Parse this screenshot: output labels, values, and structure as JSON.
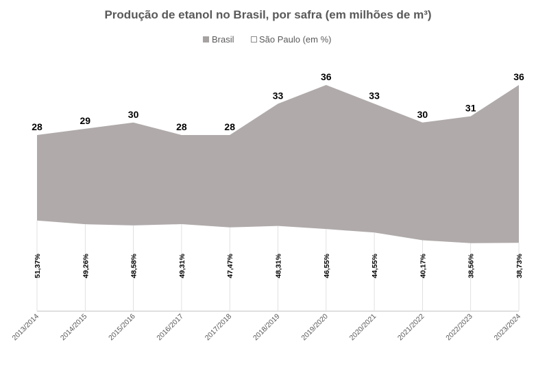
{
  "chart_data": {
    "type": "area",
    "title": "Produção de etanol no Brasil, por safra (em milhões de m³)",
    "categories": [
      "2013/2014",
      "2014/2015",
      "2015/2016",
      "2016/2017",
      "2017/2018",
      "2018/2019",
      "2019/2020",
      "2020/2021",
      "2021/2022",
      "2022/2023",
      "2023/2024"
    ],
    "series": [
      {
        "name": "Brasil",
        "values": [
          28,
          29,
          30,
          28,
          28,
          33,
          36,
          33,
          30,
          31,
          36
        ],
        "value_labels": [
          "28",
          "29",
          "30",
          "28",
          "28",
          "33",
          "36",
          "33",
          "30",
          "31",
          "36"
        ],
        "color": "#b0aaaa"
      },
      {
        "name": "São Paulo (em %)",
        "values": [
          51.37,
          49.26,
          48.58,
          49.31,
          47.47,
          48.31,
          46.55,
          44.55,
          40.17,
          38.56,
          38.73
        ],
        "value_labels": [
          "51,37%",
          "49,26%",
          "48,58%",
          "49,31%",
          "47,47%",
          "48,31%",
          "46,55%",
          "44,55%",
          "40,17%",
          "38,56%",
          "38,73%"
        ],
        "color": "#ffffff"
      }
    ],
    "legend_position": "top",
    "grid": false
  }
}
